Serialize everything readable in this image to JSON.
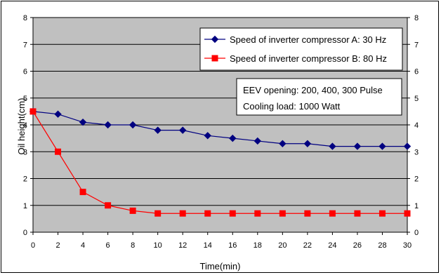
{
  "chart_data": {
    "type": "line",
    "xlabel": "Time(min)",
    "ylabel": "Oil height(cm)",
    "xlim": [
      0,
      30
    ],
    "ylim": [
      0,
      8
    ],
    "x_ticks": [
      0,
      2,
      4,
      6,
      8,
      10,
      12,
      14,
      16,
      18,
      20,
      22,
      24,
      26,
      28,
      30
    ],
    "y_ticks": [
      0,
      1,
      2,
      3,
      4,
      5,
      6,
      7,
      8
    ],
    "secondary_y_ticks": [
      0,
      1,
      2,
      3,
      4,
      5,
      6,
      7,
      8
    ],
    "grid": "horizontal",
    "plot_background": "#c0c0c0",
    "legend_position": "top-right",
    "x": [
      0,
      2,
      4,
      6,
      8,
      10,
      12,
      14,
      16,
      18,
      20,
      22,
      24,
      26,
      28,
      30
    ],
    "series": [
      {
        "name": "Speed of inverter compressor A: 30 Hz",
        "color": "#000080",
        "marker": "diamond",
        "values": [
          4.5,
          4.4,
          4.1,
          4.0,
          4.0,
          3.8,
          3.8,
          3.6,
          3.5,
          3.4,
          3.3,
          3.3,
          3.2,
          3.2,
          3.2,
          3.2
        ]
      },
      {
        "name": "Speed of inverter compressor B: 80 Hz",
        "color": "#ff0000",
        "marker": "square",
        "values": [
          4.5,
          3.0,
          1.5,
          1.0,
          0.8,
          0.7,
          0.7,
          0.7,
          0.7,
          0.7,
          0.7,
          0.7,
          0.7,
          0.7,
          0.7,
          0.7
        ]
      }
    ],
    "annotations": [
      "EEV opening: 200, 400, 300 Pulse",
      "Cooling load: 1000 Watt"
    ]
  }
}
